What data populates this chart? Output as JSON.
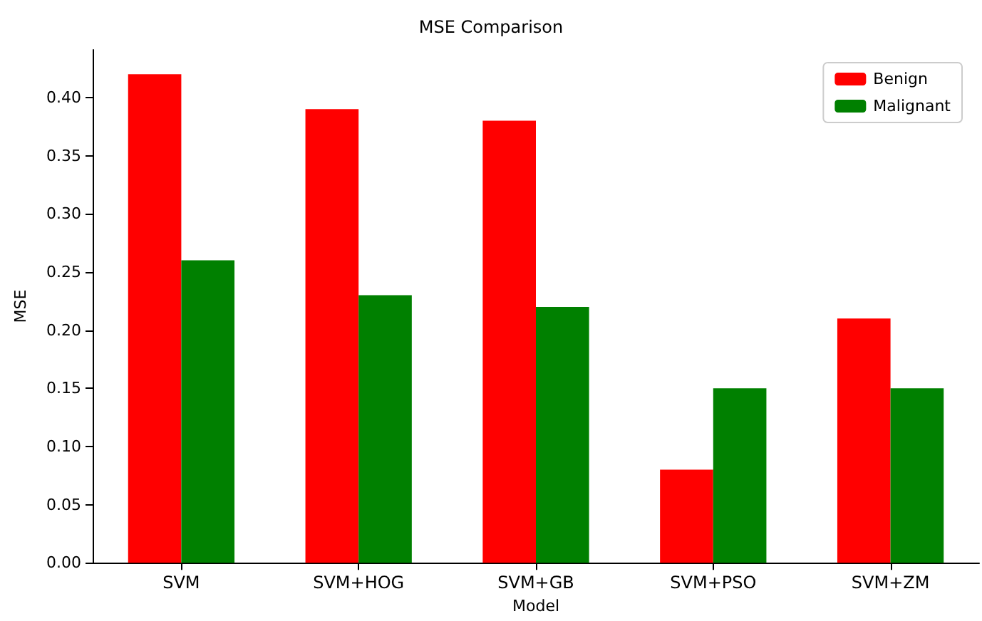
{
  "chart_data": {
    "type": "bar",
    "title": "MSE Comparison",
    "xlabel": "Model",
    "ylabel": "MSE",
    "categories": [
      "SVM",
      "SVM+HOG",
      "SVM+GB",
      "SVM+PSO",
      "SVM+ZM"
    ],
    "series": [
      {
        "name": "Benign",
        "color": "#ff0000",
        "values": [
          0.42,
          0.39,
          0.38,
          0.08,
          0.21
        ]
      },
      {
        "name": "Malignant",
        "color": "#008000",
        "values": [
          0.26,
          0.23,
          0.22,
          0.15,
          0.15
        ]
      }
    ],
    "ylim": [
      0,
      0.441
    ],
    "yticks": [
      {
        "value": 0,
        "label": "0.00"
      },
      {
        "value": 0.05,
        "label": "0.05"
      },
      {
        "value": 0.1,
        "label": "0.10"
      },
      {
        "value": 0.15,
        "label": "0.15"
      },
      {
        "value": 0.2,
        "label": "0.20"
      },
      {
        "value": 0.25,
        "label": "0.25"
      },
      {
        "value": 0.3,
        "label": "0.30"
      },
      {
        "value": 0.35,
        "label": "0.35"
      },
      {
        "value": 0.4,
        "label": "0.40"
      }
    ],
    "grid": false,
    "legend": "top right"
  }
}
